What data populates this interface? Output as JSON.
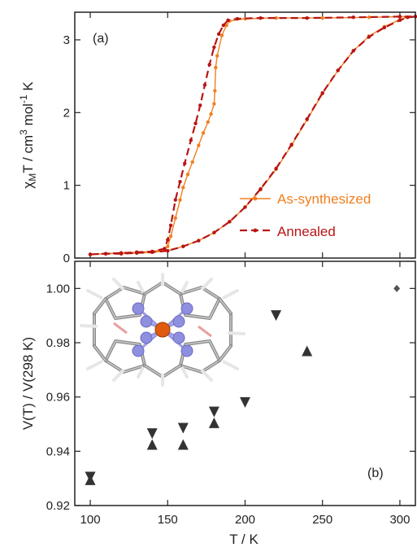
{
  "colors": {
    "as_synthesized": "#f08020",
    "annealed": "#b81515",
    "markers": "#333333",
    "frame": "#222222"
  },
  "chart_data": [
    {
      "type": "line",
      "panel_label": "(a)",
      "ylabel": {
        "symbol": "χ",
        "subscript": "M",
        "part1": "T / cm",
        "exp1": "3",
        "part2": " mol",
        "exp2": "-1",
        "part3": " K"
      },
      "xlim": [
        90,
        310
      ],
      "ylim": [
        0,
        3.38
      ],
      "yticks": [
        0,
        1,
        2,
        3
      ],
      "legend_position": "lower-right",
      "series": [
        {
          "name": "As-synthesized",
          "color": "#f08020",
          "style": "solid",
          "points": [
            [
              100,
              0.05
            ],
            [
              110,
              0.06
            ],
            [
              120,
              0.07
            ],
            [
              130,
              0.08
            ],
            [
              140,
              0.09
            ],
            [
              148,
              0.12
            ],
            [
              150,
              0.16
            ],
            [
              152,
              0.3
            ],
            [
              155,
              0.55
            ],
            [
              158,
              0.8
            ],
            [
              160,
              0.97
            ],
            [
              163,
              1.15
            ],
            [
              166,
              1.32
            ],
            [
              170,
              1.55
            ],
            [
              173,
              1.72
            ],
            [
              176,
              1.87
            ],
            [
              178,
              1.98
            ],
            [
              180,
              2.12
            ],
            [
              180.5,
              2.3
            ],
            [
              181,
              2.62
            ],
            [
              182,
              2.78
            ],
            [
              185,
              3.06
            ],
            [
              188,
              3.2
            ],
            [
              190,
              3.26
            ],
            [
              200,
              3.29
            ],
            [
              220,
              3.3
            ],
            [
              250,
              3.3
            ],
            [
              280,
              3.31
            ],
            [
              300,
              3.32
            ],
            [
              310,
              3.32
            ],
            [
              305,
              3.31
            ],
            [
              300,
              3.28
            ],
            [
              290,
              3.18
            ],
            [
              280,
              3.05
            ],
            [
              270,
              2.85
            ],
            [
              260,
              2.58
            ],
            [
              250,
              2.26
            ],
            [
              240,
              1.9
            ],
            [
              230,
              1.55
            ],
            [
              220,
              1.22
            ],
            [
              210,
              0.94
            ],
            [
              200,
              0.7
            ],
            [
              190,
              0.5
            ],
            [
              180,
              0.35
            ],
            [
              170,
              0.24
            ],
            [
              160,
              0.16
            ],
            [
              150,
              0.1
            ],
            [
              140,
              0.08
            ],
            [
              130,
              0.07
            ],
            [
              120,
              0.06
            ],
            [
              110,
              0.06
            ],
            [
              100,
              0.05
            ]
          ]
        },
        {
          "name": "Annealed",
          "color": "#b81515",
          "style": "dashed",
          "points": [
            [
              100,
              0.05
            ],
            [
              110,
              0.06
            ],
            [
              120,
              0.07
            ],
            [
              130,
              0.08
            ],
            [
              140,
              0.09
            ],
            [
              148,
              0.13
            ],
            [
              150,
              0.25
            ],
            [
              152,
              0.45
            ],
            [
              155,
              0.8
            ],
            [
              158,
              1.05
            ],
            [
              161,
              1.3
            ],
            [
              165,
              1.62
            ],
            [
              168,
              1.85
            ],
            [
              171,
              2.1
            ],
            [
              174,
              2.38
            ],
            [
              177,
              2.66
            ],
            [
              180,
              2.9
            ],
            [
              183,
              3.08
            ],
            [
              186,
              3.2
            ],
            [
              189,
              3.27
            ],
            [
              195,
              3.29
            ],
            [
              210,
              3.3
            ],
            [
              240,
              3.3
            ],
            [
              270,
              3.31
            ],
            [
              300,
              3.32
            ],
            [
              310,
              3.32
            ],
            [
              305,
              3.31
            ],
            [
              300,
              3.27
            ],
            [
              290,
              3.17
            ],
            [
              280,
              3.04
            ],
            [
              270,
              2.85
            ],
            [
              260,
              2.58
            ],
            [
              250,
              2.27
            ],
            [
              240,
              1.91
            ],
            [
              230,
              1.56
            ],
            [
              220,
              1.23
            ],
            [
              210,
              0.95
            ],
            [
              200,
              0.7
            ],
            [
              190,
              0.5
            ],
            [
              180,
              0.35
            ],
            [
              170,
              0.24
            ],
            [
              160,
              0.16
            ],
            [
              150,
              0.1
            ],
            [
              140,
              0.08
            ],
            [
              130,
              0.07
            ],
            [
              120,
              0.06
            ],
            [
              110,
              0.06
            ],
            [
              100,
              0.05
            ]
          ]
        }
      ]
    },
    {
      "type": "scatter",
      "panel_label": "(b)",
      "ylabel": "V(T) / V(298 K)",
      "xlabel": "T / K",
      "xlim": [
        90,
        310
      ],
      "ylim": [
        0.92,
        1.01
      ],
      "xticks": [
        100,
        150,
        200,
        250,
        300
      ],
      "yticks": [
        0.92,
        0.94,
        0.96,
        0.98,
        1.0
      ],
      "ytick_labels": [
        "0.92",
        "0.94",
        "0.96",
        "0.98",
        "1.00"
      ],
      "series": [
        {
          "marker": "triangle-down",
          "points": [
            [
              100,
              0.9305
            ],
            [
              140,
              0.9465
            ],
            [
              160,
              0.9485
            ],
            [
              180,
              0.9545
            ],
            [
              200,
              0.958
            ],
            [
              220,
              0.99
            ]
          ]
        },
        {
          "marker": "triangle-up",
          "points": [
            [
              100,
              0.9295
            ],
            [
              140,
              0.9425
            ],
            [
              160,
              0.9425
            ],
            [
              180,
              0.9505
            ],
            [
              240,
              0.977
            ]
          ]
        },
        {
          "marker": "diamond",
          "points": [
            [
              298,
              1.0
            ]
          ]
        }
      ]
    }
  ]
}
